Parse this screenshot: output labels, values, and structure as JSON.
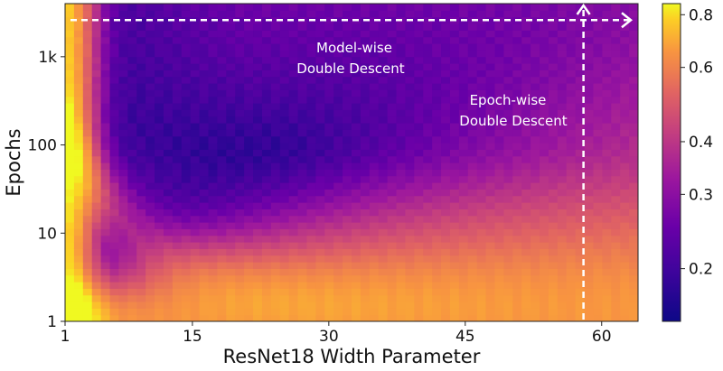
{
  "chart_data": {
    "type": "heatmap",
    "xlabel": "ResNet18 Width Parameter",
    "ylabel": "Epochs",
    "x_range": [
      1,
      64
    ],
    "y_range": [
      1,
      4000
    ],
    "y_scale": "log",
    "x_ticks": [
      {
        "value": 1,
        "label": "1"
      },
      {
        "value": 15,
        "label": "15"
      },
      {
        "value": 30,
        "label": "30"
      },
      {
        "value": 45,
        "label": "45"
      },
      {
        "value": 60,
        "label": "60"
      }
    ],
    "y_ticks": [
      {
        "value": 1,
        "label": "1"
      },
      {
        "value": 10,
        "label": "10"
      },
      {
        "value": 100,
        "label": "100"
      },
      {
        "value": 1000,
        "label": "1k"
      }
    ],
    "colorbar": {
      "range": [
        0.15,
        0.85
      ],
      "scale": "log",
      "colormap": "plasma",
      "ticks": [
        {
          "value": 0.2,
          "label": "0.2"
        },
        {
          "value": 0.3,
          "label": "0.3"
        },
        {
          "value": 0.4,
          "label": "0.4"
        },
        {
          "value": 0.6,
          "label": "0.6"
        },
        {
          "value": 0.8,
          "label": "0.8"
        }
      ]
    },
    "annotations": [
      {
        "lines": [
          "Model-wise",
          "Double Descent"
        ],
        "arrow": "horizontal",
        "at_y": 2600
      },
      {
        "lines": [
          "Epoch-wise",
          "Double Descent"
        ],
        "arrow": "vertical",
        "at_x": 58
      }
    ],
    "grid": false
  }
}
